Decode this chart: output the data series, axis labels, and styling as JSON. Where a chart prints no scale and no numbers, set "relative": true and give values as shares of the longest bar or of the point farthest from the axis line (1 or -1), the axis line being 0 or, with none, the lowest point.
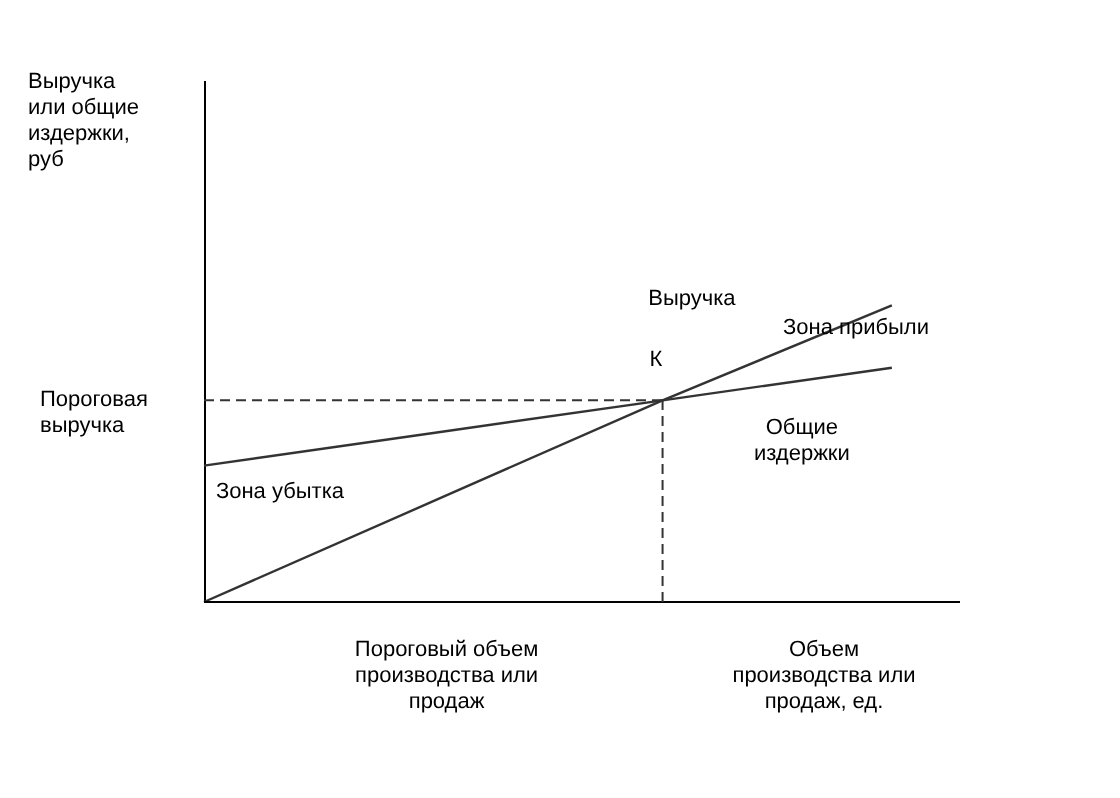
{
  "chart_data": {
    "type": "line",
    "relative": true,
    "categories": [
      null,
      null,
      null,
      null
    ],
    "xlabel": "Объем\nпроизводства или\nпродаж, ед.",
    "marker": "none",
    "line_style": "solid",
    "series": [
      {
        "name": "Выручка",
        "color": "#333333",
        "values": [
          0,
          0.34,
          0.68,
          1
        ]
      },
      {
        "name": "Общие издержки",
        "color": "#333333",
        "values": [
          0.46,
          0.57,
          0.68,
          0.79
        ]
      }
    ],
    "ref_lines": [
      {
        "axis": "x",
        "value": null,
        "label": "Пороговый объем\nпроизводства или\nпродаж",
        "line_style": "dashed",
        "color": "#333333"
      },
      {
        "axis": "y",
        "value": 0.68,
        "label": "Пороговая\nвыручка",
        "line_style": "dashed",
        "color": "#333333"
      }
    ],
    "annotations": [
      "Зона прибыли",
      "Зона убытка",
      "К",
      "Выручка\nили общие\nиздержки,\nруб"
    ]
  }
}
